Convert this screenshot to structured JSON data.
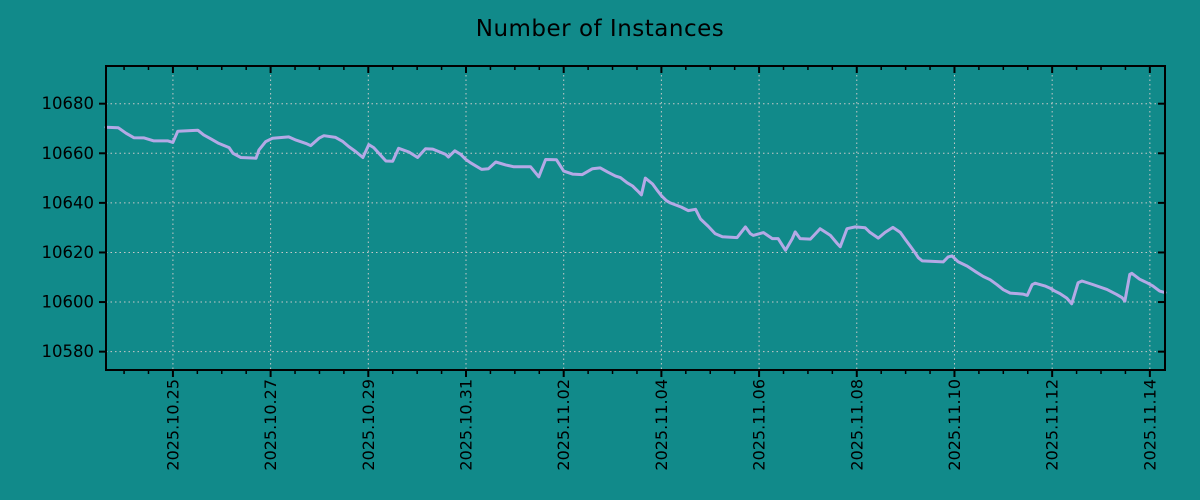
{
  "title": "Number of Instances",
  "chart_data": {
    "type": "line",
    "title": "Number of Instances",
    "legend": "none",
    "grid": "dotted lines at major ticks, both axes",
    "x_unit": "days since 2025-10-23 00:00",
    "xlim_days": [
      0.63,
      22.31
    ],
    "ylim": [
      10572.6,
      10695.2
    ],
    "y_ticks": [
      10580,
      10600,
      10620,
      10640,
      10660,
      10680
    ],
    "x_ticks_major_days": [
      2,
      4,
      6,
      8,
      10,
      12,
      14,
      16,
      18,
      20,
      22
    ],
    "x_tick_labels": [
      "2025.10.25",
      "2025.10.27",
      "2025.10.29",
      "2025.10.31",
      "2025.11.02",
      "2025.11.04",
      "2025.11.06",
      "2025.11.08",
      "2025.11.10",
      "2025.11.12",
      "2025.11.14"
    ],
    "x_minor_interval_days": 0.5,
    "colors": {
      "background": "#118a8a",
      "line": "#b4a9e6",
      "grid": "#c8c8c8",
      "axis": "#000000",
      "text": "#000000"
    },
    "series": [
      {
        "name": "instances",
        "x_days": [
          0.63,
          0.88,
          1.04,
          1.2,
          1.41,
          1.61,
          1.9,
          2.0,
          2.1,
          2.51,
          2.63,
          2.78,
          2.94,
          3.15,
          3.23,
          3.39,
          3.7,
          3.76,
          3.9,
          4.04,
          4.37,
          4.52,
          4.72,
          4.82,
          4.99,
          5.09,
          5.33,
          5.48,
          5.6,
          5.74,
          5.89,
          6.01,
          6.11,
          6.36,
          6.5,
          6.62,
          6.83,
          7.01,
          7.17,
          7.32,
          7.42,
          7.58,
          7.64,
          7.77,
          7.89,
          7.99,
          8.09,
          8.2,
          8.32,
          8.46,
          8.61,
          8.81,
          8.97,
          9.32,
          9.49,
          9.63,
          9.85,
          10.0,
          10.18,
          10.38,
          10.59,
          10.75,
          10.9,
          11.06,
          11.16,
          11.3,
          11.41,
          11.53,
          11.59,
          11.67,
          11.82,
          11.92,
          12.0,
          12.1,
          12.18,
          12.41,
          12.55,
          12.7,
          12.8,
          12.96,
          13.1,
          13.25,
          13.55,
          13.72,
          13.82,
          13.88,
          14.09,
          14.27,
          14.39,
          14.54,
          14.68,
          14.74,
          14.84,
          15.05,
          15.19,
          15.25,
          15.35,
          15.46,
          15.6,
          15.66,
          15.8,
          15.97,
          16.17,
          16.27,
          16.44,
          16.58,
          16.74,
          16.89,
          16.99,
          17.09,
          17.19,
          17.26,
          17.34,
          17.77,
          17.87,
          17.95,
          18.07,
          18.26,
          18.42,
          18.59,
          18.73,
          18.87,
          19.0,
          19.14,
          19.4,
          19.49,
          19.59,
          19.65,
          19.85,
          19.96,
          20.04,
          20.16,
          20.3,
          20.4,
          20.53,
          20.61,
          20.83,
          21.12,
          21.32,
          21.43,
          21.49,
          21.59,
          21.63,
          21.79,
          21.94,
          22.06,
          22.2,
          22.31
        ],
        "values": [
          10670.5,
          10670.3,
          10668.1,
          10666.3,
          10666.2,
          10665.0,
          10665.0,
          10664.4,
          10668.9,
          10669.3,
          10667.4,
          10665.8,
          10664.0,
          10662.3,
          10660.0,
          10658.3,
          10658.0,
          10661.3,
          10664.7,
          10666.1,
          10666.6,
          10665.3,
          10664.0,
          10663.1,
          10666.1,
          10667.1,
          10666.4,
          10664.7,
          10662.7,
          10660.7,
          10658.3,
          10663.5,
          10662.3,
          10656.9,
          10656.8,
          10662.0,
          10660.5,
          10658.3,
          10661.8,
          10661.7,
          10660.9,
          10659.6,
          10658.5,
          10661.0,
          10659.6,
          10657.6,
          10656.2,
          10654.9,
          10653.5,
          10653.8,
          10656.5,
          10655.3,
          10654.6,
          10654.6,
          10650.5,
          10657.5,
          10657.4,
          10652.8,
          10651.6,
          10651.4,
          10653.8,
          10654.1,
          10652.4,
          10650.8,
          10650.2,
          10648.1,
          10646.8,
          10644.5,
          10643.2,
          10650.0,
          10647.6,
          10644.9,
          10642.9,
          10640.9,
          10640.0,
          10638.3,
          10636.9,
          10637.4,
          10633.5,
          10630.5,
          10627.6,
          10626.3,
          10626.0,
          10630.3,
          10627.6,
          10626.9,
          10628.0,
          10625.6,
          10625.6,
          10620.9,
          10625.6,
          10628.3,
          10625.6,
          10625.4,
          10628.3,
          10629.6,
          10628.3,
          10626.9,
          10623.6,
          10622.3,
          10629.6,
          10630.3,
          10630.0,
          10628.1,
          10625.8,
          10628.1,
          10630.1,
          10628.1,
          10625.4,
          10622.7,
          10620.0,
          10617.9,
          10616.6,
          10616.2,
          10618.2,
          10618.6,
          10616.3,
          10614.5,
          10612.4,
          10610.3,
          10609.0,
          10607.0,
          10605.0,
          10603.6,
          10603.2,
          10602.7,
          10607.0,
          10607.6,
          10606.5,
          10605.6,
          10604.6,
          10603.4,
          10601.6,
          10599.3,
          10607.8,
          10608.5,
          10607.1,
          10605.1,
          10603.1,
          10601.8,
          10600.4,
          10611.2,
          10611.6,
          10609.2,
          10607.8,
          10606.5,
          10604.4,
          10603.8
        ]
      }
    ]
  }
}
